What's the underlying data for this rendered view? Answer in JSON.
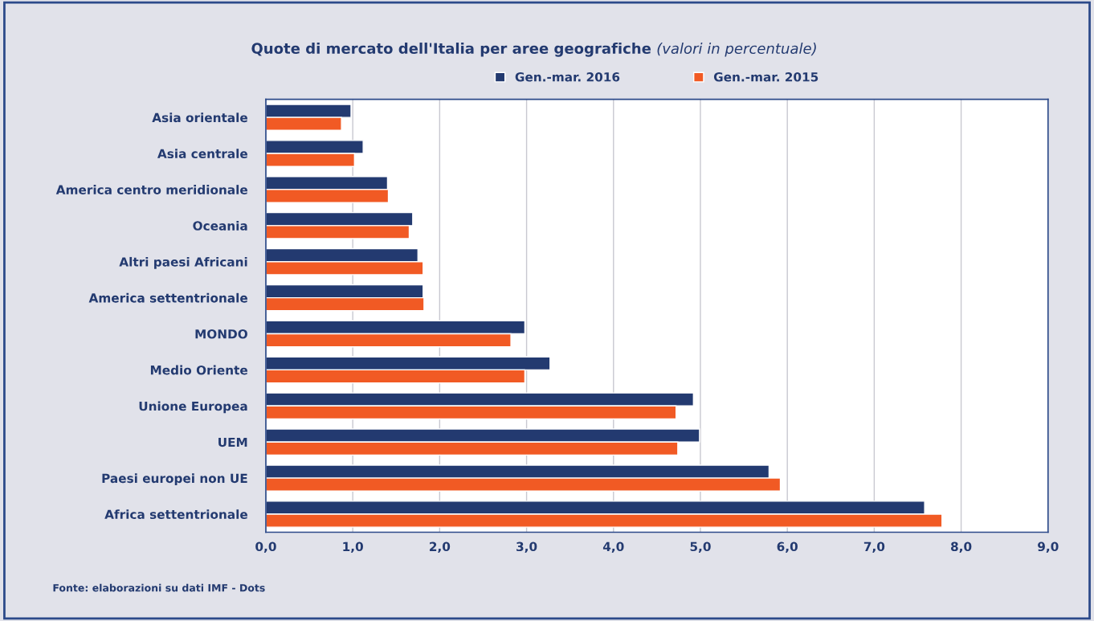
{
  "chart_data": {
    "type": "bar",
    "orientation": "horizontal",
    "title": "Quote di mercato dell'Italia per aree geografiche",
    "subtitle": "(valori in percentuale)",
    "categories": [
      "Asia orientale",
      "Asia centrale",
      "America centro meridionale",
      "Oceania",
      "Altri paesi Africani",
      "America settentrionale",
      "MONDO",
      "Medio Oriente",
      "Unione Europea",
      "UEM",
      "Paesi europei non UE",
      "Africa settentrionale"
    ],
    "series": [
      {
        "name": "Gen.-mar. 2016",
        "color": "#233a70",
        "values": [
          0.98,
          1.12,
          1.4,
          1.69,
          1.75,
          1.81,
          2.98,
          3.27,
          4.92,
          4.99,
          5.79,
          7.58
        ]
      },
      {
        "name": "Gen.-mar. 2015",
        "color": "#f15a24",
        "values": [
          0.87,
          1.02,
          1.41,
          1.65,
          1.81,
          1.82,
          2.82,
          2.98,
          4.72,
          4.74,
          5.92,
          7.78
        ]
      }
    ],
    "xlim": [
      0,
      9
    ],
    "xticks": [
      {
        "value": 0,
        "label": "0,0"
      },
      {
        "value": 1,
        "label": "1,0"
      },
      {
        "value": 2,
        "label": "2,0"
      },
      {
        "value": 3,
        "label": "3,0"
      },
      {
        "value": 4,
        "label": "4,0"
      },
      {
        "value": 5,
        "label": "5,0"
      },
      {
        "value": 6,
        "label": "6,0"
      },
      {
        "value": 7,
        "label": "7,0"
      },
      {
        "value": 8,
        "label": "8,0"
      },
      {
        "value": 9,
        "label": "9,0"
      }
    ],
    "grid": "x",
    "legend": "top",
    "annotations": [
      "Fonte: elaborazioni su dati IMF - Dots"
    ]
  }
}
